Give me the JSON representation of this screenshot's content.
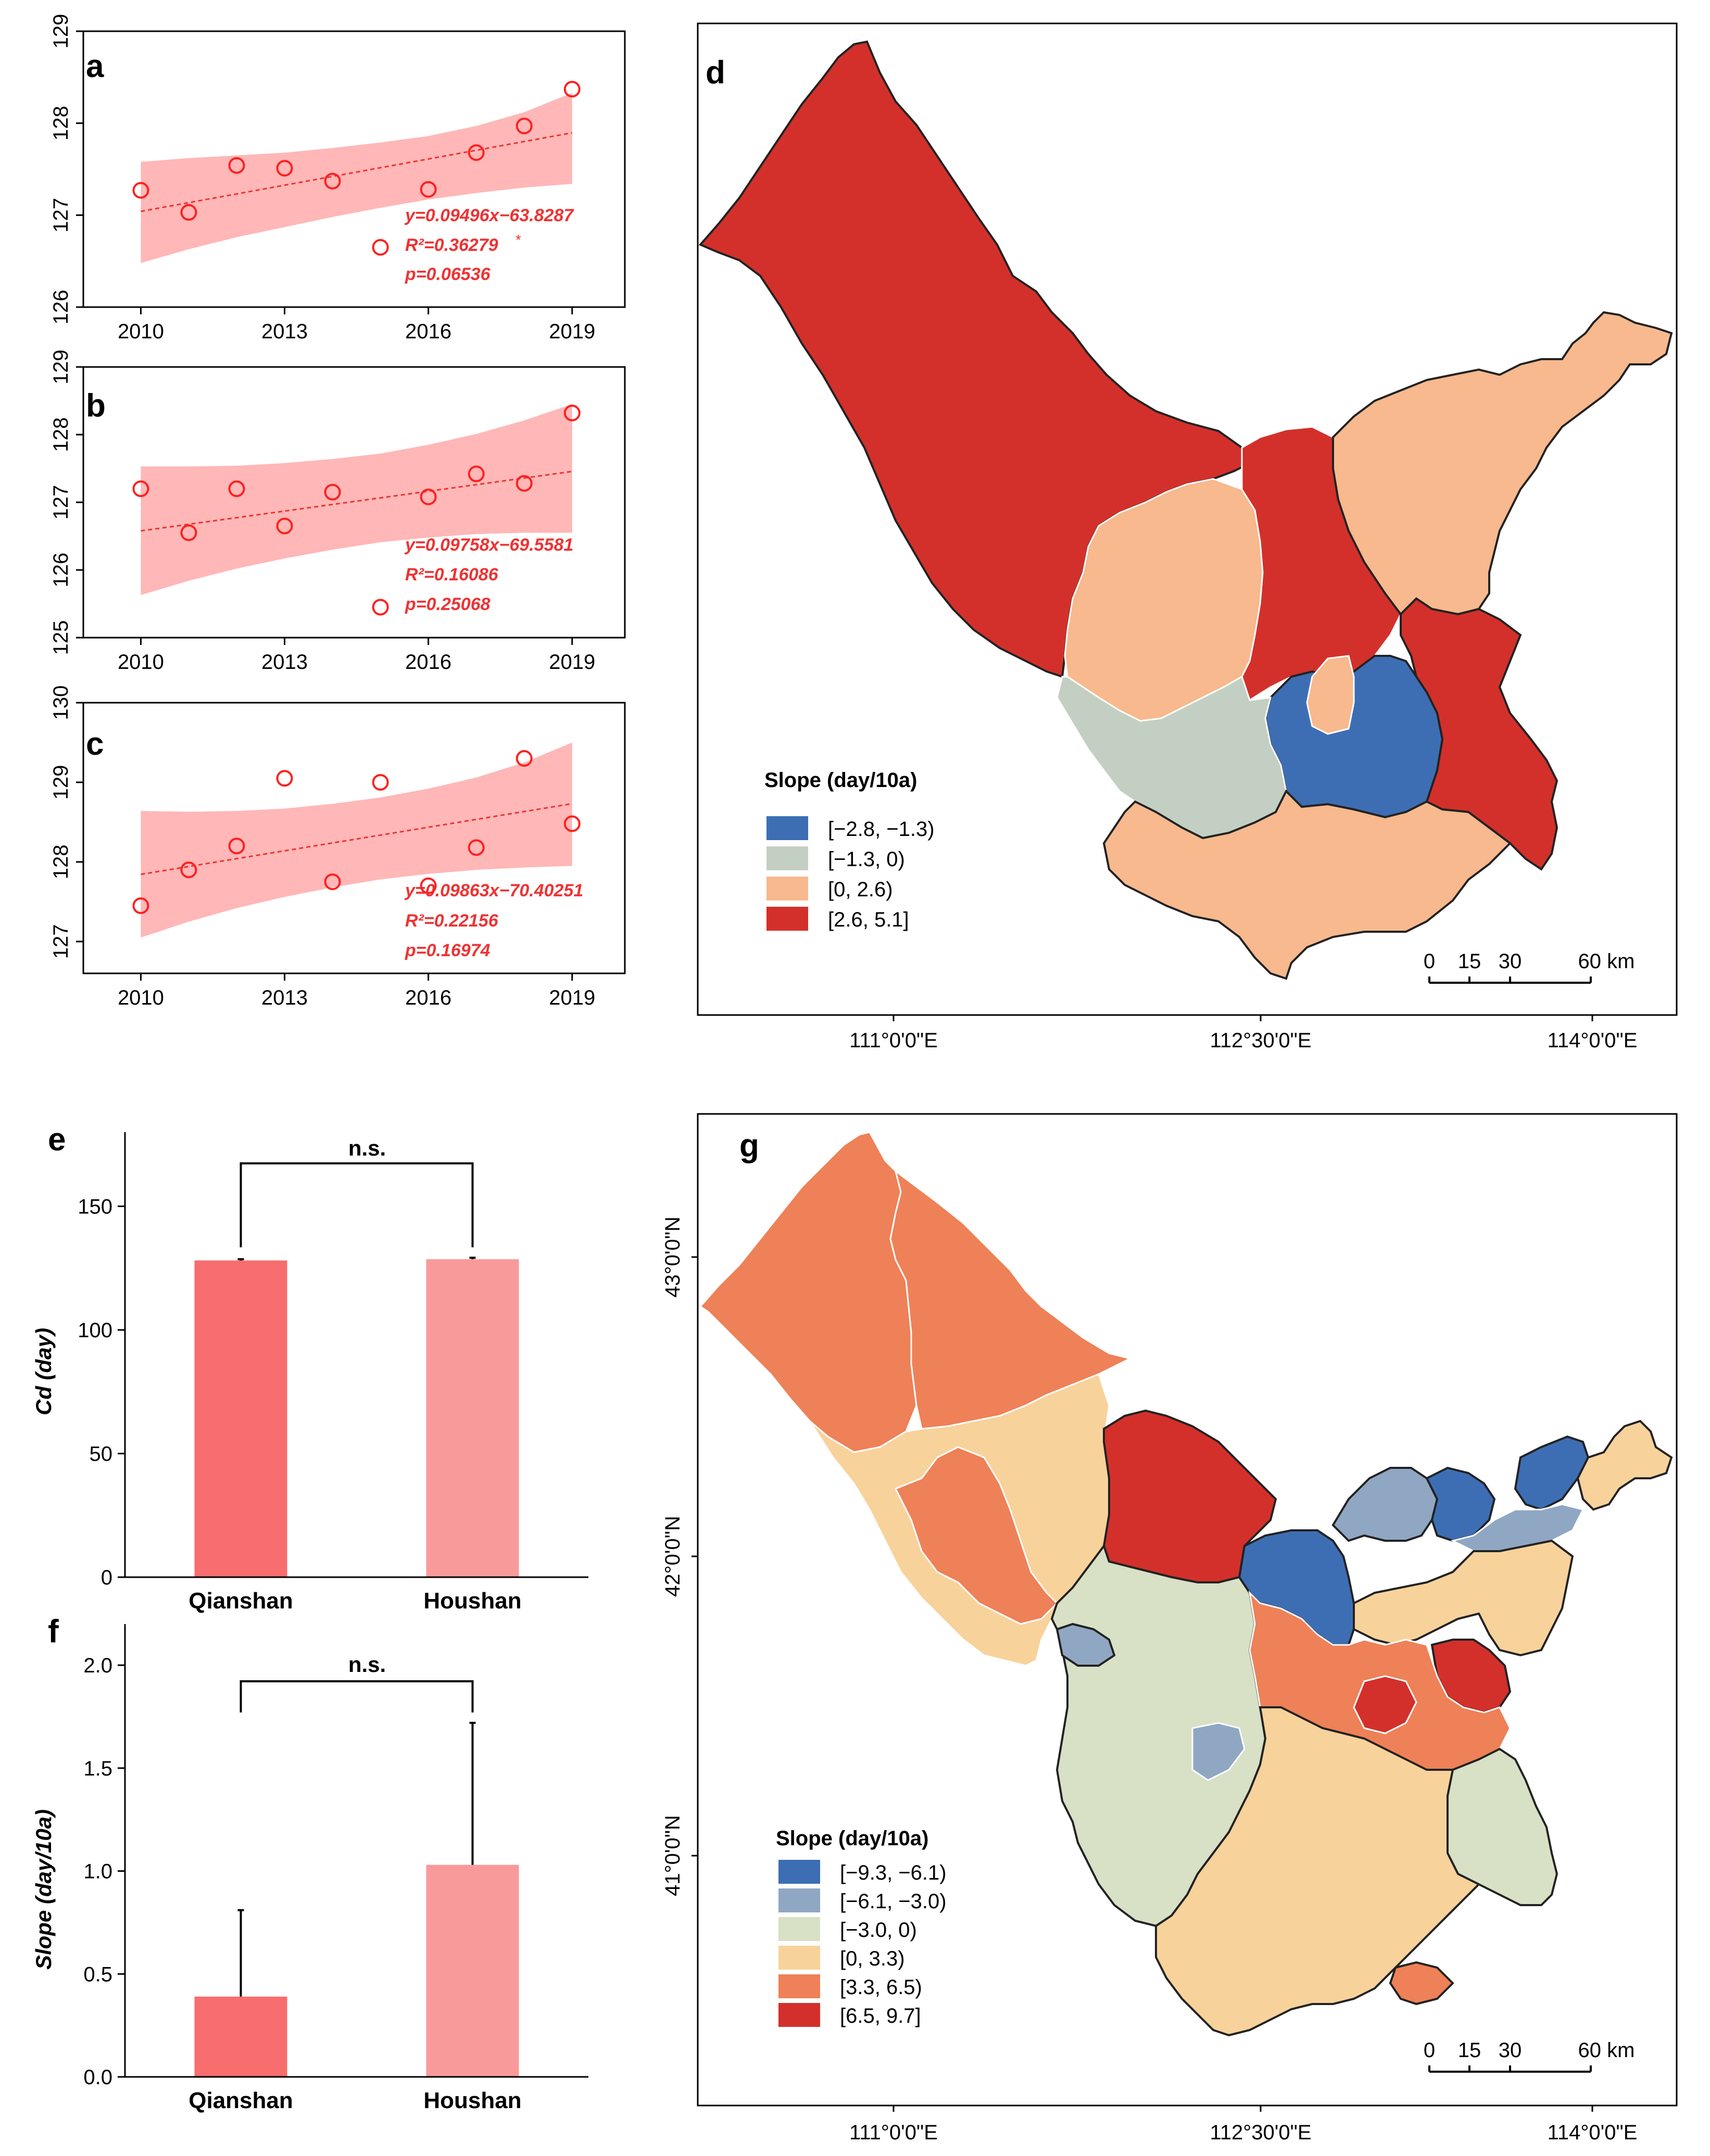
{
  "colors": {
    "point": "#ff2020",
    "band": "#ffaaaa",
    "bar_qianshan": "#f86d6d",
    "bar_houshan": "#f99a9a",
    "map_d": [
      "#3d6eb4",
      "#c4cfc3",
      "#f7b98d",
      "#d3302b"
    ],
    "map_g": [
      "#3d6eb4",
      "#8fa7c3",
      "#d8e0c6",
      "#f8d29b",
      "#ee8157",
      "#d3302b"
    ]
  },
  "panels": {
    "a": {
      "label": "a",
      "eq": "y=0.09496x−63.8287",
      "r2": "R²=0.36279",
      "r2_mark": "*",
      "p": "p=0.06536"
    },
    "b": {
      "label": "b",
      "eq": "y=0.09758x−69.5581",
      "r2": "R²=0.16086",
      "p": "p=0.25068"
    },
    "c": {
      "label": "c",
      "eq": "y=0.09863x−70.40251",
      "r2": "R²=0.22156",
      "p": "p=0.16974"
    },
    "d": {
      "label": "d",
      "legend_title": "Slope (day/10a)",
      "legend": [
        "[−2.8, −1.3)",
        "[−1.3, 0)",
        "[0, 2.6)",
        "[2.6, 5.1]"
      ],
      "scale_labels": [
        "0",
        "15",
        "30",
        "60 km"
      ],
      "lon_ticks": [
        "111°0'0\"E",
        "112°30'0\"E",
        "114°0'0\"E"
      ]
    },
    "e": {
      "label": "e",
      "ylabel": "Cd (day)",
      "sig": "n.s."
    },
    "f": {
      "label": "f",
      "ylabel": "Slope (day/10a)",
      "sig": "n.s."
    },
    "g": {
      "label": "g",
      "legend_title": "Slope (day/10a)",
      "legend": [
        "[−9.3, −6.1)",
        "[−6.1, −3.0)",
        "[−3.0, 0)",
        "[0, 3.3)",
        "[3.3, 6.5)",
        "[6.5, 9.7]"
      ],
      "scale_labels": [
        "0",
        "15",
        "30",
        "60 km"
      ],
      "lon_ticks": [
        "111°0'0\"E",
        "112°30'0\"E",
        "114°0'0\"E"
      ],
      "lat_ticks": [
        "43°0'0\"N",
        "42°0'0\"N",
        "41°0'0\"N"
      ]
    }
  },
  "chart_data": [
    {
      "panel": "a",
      "type": "scatter",
      "x": [
        2010,
        2011,
        2012,
        2013,
        2014,
        2015,
        2016,
        2017,
        2018,
        2019
      ],
      "y": [
        127.27,
        127.03,
        127.54,
        127.51,
        127.37,
        126.65,
        127.28,
        127.68,
        127.97,
        128.37
      ],
      "fit": {
        "slope": 0.09496,
        "intercept": -63.8287
      },
      "band_lower": [
        126.48,
        126.63,
        126.76,
        126.87,
        126.98,
        127.08,
        127.17,
        127.24,
        127.3,
        127.34
      ],
      "band_upper": [
        127.58,
        127.62,
        127.65,
        127.68,
        127.73,
        127.79,
        127.86,
        127.97,
        128.12,
        128.33
      ],
      "xlim": [
        2008.8,
        2020.1
      ],
      "ylim": [
        126,
        129
      ],
      "xticks": [
        2010,
        2013,
        2016,
        2019
      ],
      "yticks": [
        126,
        127,
        128,
        129
      ]
    },
    {
      "panel": "b",
      "type": "scatter",
      "x": [
        2010,
        2011,
        2012,
        2013,
        2014,
        2015,
        2016,
        2017,
        2018,
        2019
      ],
      "y": [
        127.2,
        126.55,
        127.2,
        126.65,
        127.15,
        125.45,
        127.08,
        127.42,
        127.28,
        128.32
      ],
      "fit": {
        "slope": 0.09758,
        "intercept": -69.5581
      },
      "band_lower": [
        125.63,
        125.84,
        126.02,
        126.17,
        126.3,
        126.41,
        126.48,
        126.53,
        126.55,
        126.55
      ],
      "band_upper": [
        127.53,
        127.53,
        127.54,
        127.58,
        127.64,
        127.72,
        127.85,
        128.01,
        128.21,
        128.45
      ],
      "xlim": [
        2008.8,
        2020.1
      ],
      "ylim": [
        125,
        129
      ],
      "xticks": [
        2010,
        2013,
        2016,
        2019
      ],
      "yticks": [
        125,
        126,
        127,
        128,
        129
      ]
    },
    {
      "panel": "c",
      "type": "scatter",
      "x": [
        2010,
        2011,
        2012,
        2013,
        2014,
        2015,
        2016,
        2017,
        2018,
        2019
      ],
      "y": [
        127.45,
        127.9,
        128.2,
        129.05,
        127.75,
        129.0,
        127.7,
        128.18,
        129.3,
        128.48
      ],
      "fit": {
        "slope": 0.09863,
        "intercept": -70.40251
      },
      "band_lower": [
        127.05,
        127.25,
        127.42,
        127.56,
        127.68,
        127.78,
        127.85,
        127.9,
        127.93,
        127.95
      ],
      "band_upper": [
        128.64,
        128.63,
        128.64,
        128.67,
        128.73,
        128.81,
        128.92,
        129.06,
        129.25,
        129.5
      ],
      "xlim": [
        2008.8,
        2020.1
      ],
      "ylim": [
        126.6,
        130
      ],
      "xticks": [
        2010,
        2013,
        2016,
        2019
      ],
      "yticks": [
        127,
        128,
        129,
        130
      ]
    },
    {
      "panel": "e",
      "type": "bar",
      "categories": [
        "Qianshan",
        "Houshan"
      ],
      "values": [
        128.1,
        128.6
      ],
      "errors": [
        0.5,
        0.6
      ],
      "ylabel": "Cd (day)",
      "ylim": [
        0,
        180
      ],
      "yticks": [
        0,
        50,
        100,
        150
      ]
    },
    {
      "panel": "f",
      "type": "bar",
      "categories": [
        "Qianshan",
        "Houshan"
      ],
      "values": [
        0.39,
        1.03
      ],
      "errors": [
        0.42,
        0.69
      ],
      "ylabel": "Slope (day/10a)",
      "ylim": [
        0,
        2.2
      ],
      "yticks": [
        0.0,
        0.5,
        1.0,
        1.5,
        2.0
      ]
    }
  ]
}
